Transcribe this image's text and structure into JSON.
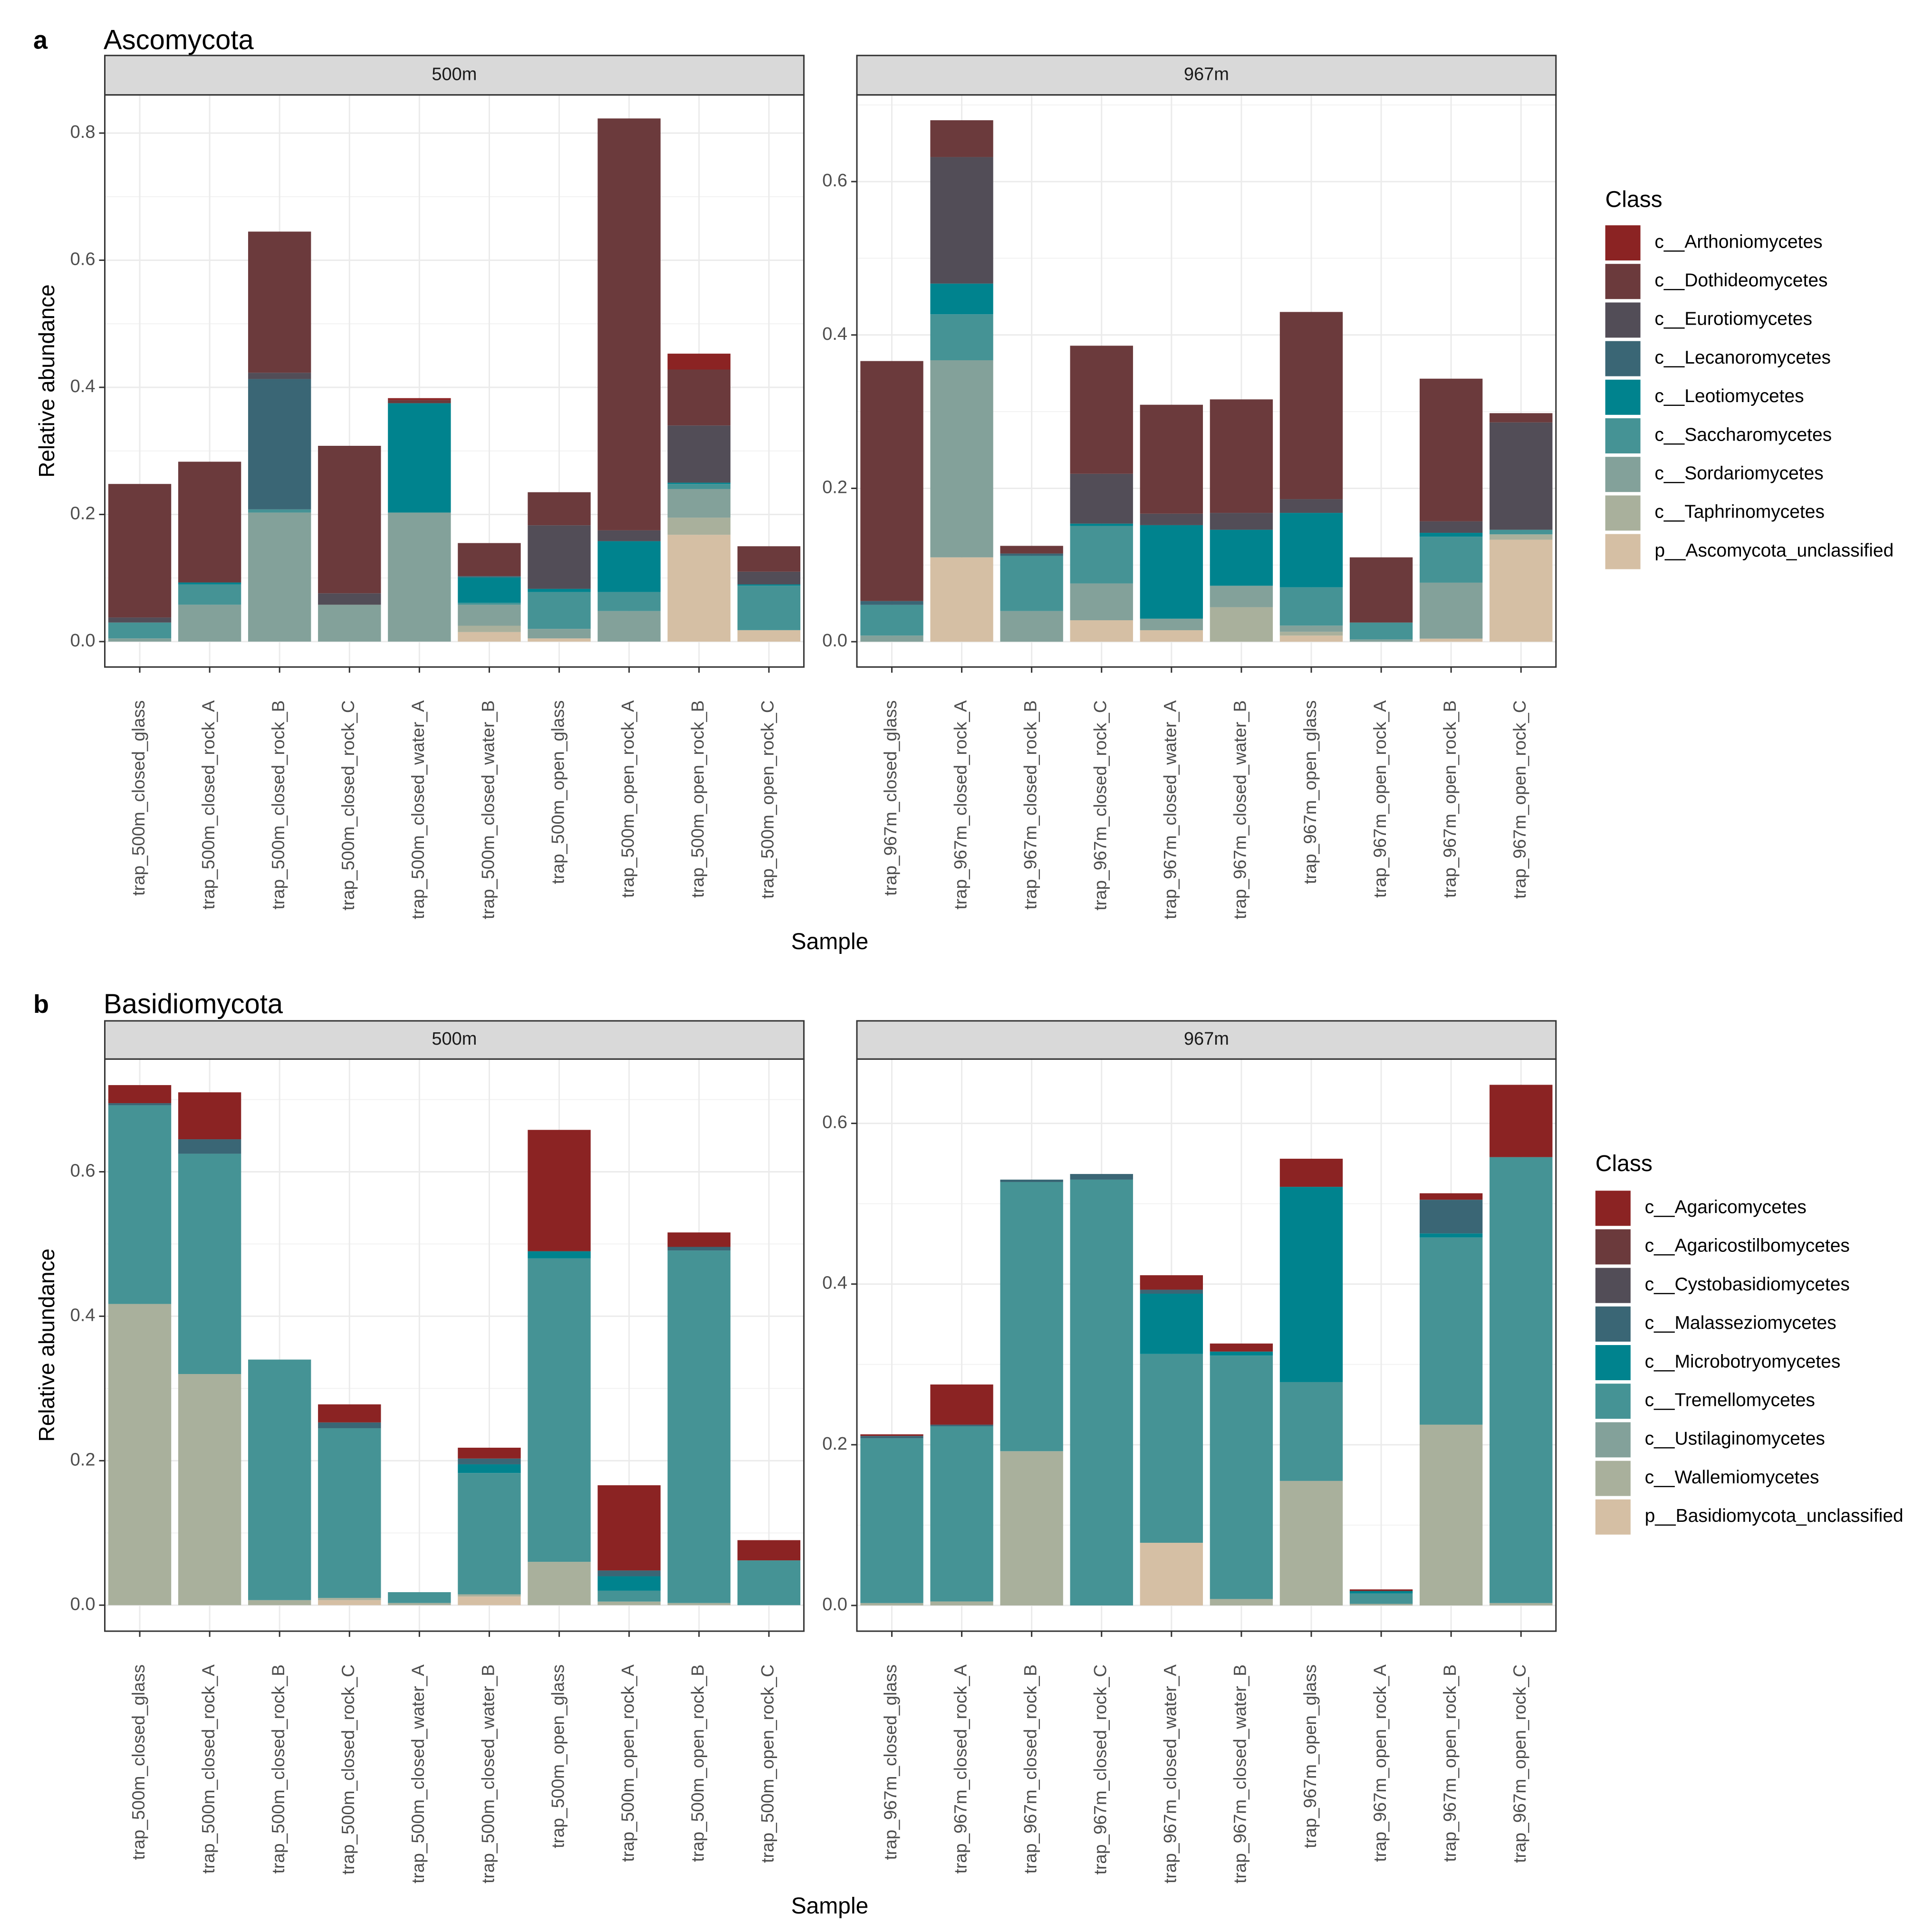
{
  "chart_data": [
    {
      "type": "bar",
      "stacked": true,
      "panel_label": "a",
      "title": "Ascomycota",
      "xlabel": "Sample",
      "ylabel": "Relative abundance",
      "legend_title": "Class",
      "legend_position": "right",
      "grid": true,
      "classes": [
        "c__Arthoniomycetes",
        "c__Dothideomycetes",
        "c__Eurotiomycetes",
        "c__Lecanoromycetes",
        "c__Leotiomycetes",
        "c__Saccharomycetes",
        "c__Sordariomycetes",
        "c__Taphrinomycetes",
        "p__Ascomycota_unclassified"
      ],
      "colors": [
        "#8B2323",
        "#6B3A3C",
        "#524D57",
        "#3A6675",
        "#00838E",
        "#459395",
        "#83A19A",
        "#A9B09C",
        "#D5BFA4"
      ],
      "facets": [
        {
          "label": "500m",
          "ylim": [
            -0.04,
            0.86
          ],
          "yticks": [
            0,
            0.2,
            0.4,
            0.6,
            0.8
          ],
          "ytick_labels": [
            "0.0",
            "0.2",
            "0.4",
            "0.6",
            "0.8"
          ],
          "categories": [
            "trap_500m_closed_glass",
            "trap_500m_closed_rock_A",
            "trap_500m_closed_rock_B",
            "trap_500m_closed_rock_C",
            "trap_500m_closed_water_A",
            "trap_500m_closed_water_B",
            "trap_500m_open_glass",
            "trap_500m_open_rock_A",
            "trap_500m_open_rock_B",
            "trap_500m_open_rock_C"
          ],
          "series": [
            {
              "name": "p__Ascomycota_unclassified",
              "values": [
                0,
                0,
                0,
                0,
                0,
                0.015,
                0.005,
                0,
                0.168,
                0.018
              ]
            },
            {
              "name": "c__Taphrinomycetes",
              "values": [
                0,
                0,
                0,
                0,
                0,
                0.01,
                0,
                0,
                0.027,
                0
              ]
            },
            {
              "name": "c__Sordariomycetes",
              "values": [
                0.005,
                0.058,
                0.203,
                0.058,
                0.203,
                0.033,
                0.015,
                0.048,
                0.045,
                0
              ]
            },
            {
              "name": "c__Saccharomycetes",
              "values": [
                0.025,
                0.032,
                0.005,
                0,
                0,
                0.003,
                0.058,
                0.03,
                0.008,
                0.07
              ]
            },
            {
              "name": "c__Leotiomycetes",
              "values": [
                0,
                0.003,
                0,
                0,
                0.172,
                0.04,
                0.005,
                0.08,
                0.002,
                0.002
              ]
            },
            {
              "name": "c__Lecanoromycetes",
              "values": [
                0,
                0,
                0.205,
                0,
                0,
                0.002,
                0,
                0,
                0,
                0
              ]
            },
            {
              "name": "c__Eurotiomycetes",
              "values": [
                0.008,
                0,
                0.01,
                0.018,
                0,
                0,
                0.1,
                0.017,
                0.09,
                0.02
              ]
            },
            {
              "name": "c__Dothideomycetes",
              "values": [
                0.21,
                0.19,
                0.222,
                0.232,
                0.005,
                0.052,
                0.052,
                0.648,
                0.088,
                0.04
              ]
            },
            {
              "name": "c__Arthoniomycetes",
              "values": [
                0,
                0,
                0,
                0,
                0.003,
                0,
                0,
                0,
                0.025,
                0
              ]
            }
          ]
        },
        {
          "label": "967m",
          "ylim": [
            -0.033,
            0.713
          ],
          "yticks": [
            0,
            0.2,
            0.4,
            0.6
          ],
          "ytick_labels": [
            "0.0",
            "0.2",
            "0.4",
            "0.6"
          ],
          "categories": [
            "trap_967m_closed_glass",
            "trap_967m_closed_rock_A",
            "trap_967m_closed_rock_B",
            "trap_967m_closed_rock_C",
            "trap_967m_closed_water_A",
            "trap_967m_closed_water_B",
            "trap_967m_open_glass",
            "trap_967m_open_rock_A",
            "trap_967m_open_rock_B",
            "trap_967m_open_rock_C"
          ],
          "series": [
            {
              "name": "p__Ascomycota_unclassified",
              "values": [
                0,
                0.11,
                0,
                0.028,
                0.015,
                0,
                0.008,
                0,
                0.004,
                0.133
              ]
            },
            {
              "name": "c__Taphrinomycetes",
              "values": [
                0,
                0,
                0,
                0,
                0,
                0.045,
                0.005,
                0,
                0,
                0.007
              ]
            },
            {
              "name": "c__Sordariomycetes",
              "values": [
                0.008,
                0.257,
                0.04,
                0.048,
                0.015,
                0.028,
                0.008,
                0.003,
                0.073,
                0
              ]
            },
            {
              "name": "c__Saccharomycetes",
              "values": [
                0.04,
                0.06,
                0.072,
                0.075,
                0,
                0,
                0.05,
                0.022,
                0.06,
                0.006
              ]
            },
            {
              "name": "c__Leotiomycetes",
              "values": [
                0,
                0.04,
                0,
                0.003,
                0.122,
                0.073,
                0.097,
                0,
                0.005,
                0
              ]
            },
            {
              "name": "c__Lecanoromycetes",
              "values": [
                0.005,
                0,
                0.003,
                0,
                0,
                0,
                0,
                0,
                0,
                0
              ]
            },
            {
              "name": "c__Eurotiomycetes",
              "values": [
                0,
                0.165,
                0,
                0.065,
                0.015,
                0.022,
                0.018,
                0,
                0.015,
                0.14
              ]
            },
            {
              "name": "c__Dothideomycetes",
              "values": [
                0.313,
                0.048,
                0.01,
                0.167,
                0.142,
                0.148,
                0.244,
                0.085,
                0.186,
                0.012
              ]
            },
            {
              "name": "c__Arthoniomycetes",
              "values": [
                0,
                0,
                0,
                0,
                0,
                0,
                0,
                0,
                0,
                0
              ]
            }
          ]
        }
      ]
    },
    {
      "type": "bar",
      "stacked": true,
      "panel_label": "b",
      "title": "Basidiomycota",
      "xlabel": "Sample",
      "ylabel": "Relative abundance",
      "legend_title": "Class",
      "legend_position": "right",
      "grid": true,
      "classes": [
        "c__Agaricomycetes",
        "c__Agaricostilbomycetes",
        "c__Cystobasidiomycetes",
        "c__Malasseziomycetes",
        "c__Microbotryomycetes",
        "c__Tremellomycetes",
        "c__Ustilaginomycetes",
        "c__Wallemiomycetes",
        "p__Basidiomycota_unclassified"
      ],
      "colors": [
        "#8B2323",
        "#6B3A3C",
        "#524D57",
        "#3A6675",
        "#00838E",
        "#459395",
        "#83A19A",
        "#A9B09C",
        "#D5BFA4"
      ],
      "facets": [
        {
          "label": "500m",
          "ylim": [
            -0.036,
            0.756
          ],
          "yticks": [
            0,
            0.2,
            0.4,
            0.6
          ],
          "ytick_labels": [
            "0.0",
            "0.2",
            "0.4",
            "0.6"
          ],
          "categories": [
            "trap_500m_closed_glass",
            "trap_500m_closed_rock_A",
            "trap_500m_closed_rock_B",
            "trap_500m_closed_rock_C",
            "trap_500m_closed_water_A",
            "trap_500m_closed_water_B",
            "trap_500m_open_glass",
            "trap_500m_open_rock_A",
            "trap_500m_open_rock_B",
            "trap_500m_open_rock_C"
          ],
          "series": [
            {
              "name": "p__Basidiomycota_unclassified",
              "values": [
                0,
                0,
                0,
                0.007,
                0,
                0.012,
                0,
                0,
                0,
                0
              ]
            },
            {
              "name": "c__Wallemiomycetes",
              "values": [
                0.417,
                0.32,
                0.007,
                0.003,
                0.003,
                0.003,
                0.06,
                0.005,
                0.003,
                0
              ]
            },
            {
              "name": "c__Ustilaginomycetes",
              "values": [
                0,
                0,
                0,
                0,
                0,
                0,
                0,
                0,
                0,
                0
              ]
            },
            {
              "name": "c__Tremellomycetes",
              "values": [
                0.275,
                0.305,
                0.333,
                0.235,
                0.015,
                0.168,
                0.42,
                0.015,
                0.488,
                0.062
              ]
            },
            {
              "name": "c__Microbotryomycetes",
              "values": [
                0,
                0,
                0,
                0,
                0,
                0.012,
                0.01,
                0.02,
                0,
                0
              ]
            },
            {
              "name": "c__Malasseziomycetes",
              "values": [
                0.003,
                0.02,
                0,
                0.008,
                0,
                0.008,
                0,
                0.008,
                0.005,
                0
              ]
            },
            {
              "name": "c__Cystobasidiomycetes",
              "values": [
                0,
                0,
                0,
                0,
                0,
                0,
                0,
                0,
                0,
                0
              ]
            },
            {
              "name": "c__Agaricostilbomycetes",
              "values": [
                0,
                0,
                0,
                0,
                0,
                0,
                0,
                0,
                0,
                0
              ]
            },
            {
              "name": "c__Agaricomycetes",
              "values": [
                0.025,
                0.065,
                0,
                0.025,
                0,
                0.015,
                0.168,
                0.118,
                0.02,
                0.028
              ]
            }
          ]
        },
        {
          "label": "967m",
          "ylim": [
            -0.032,
            0.68
          ],
          "yticks": [
            0,
            0.2,
            0.4,
            0.6
          ],
          "ytick_labels": [
            "0.0",
            "0.2",
            "0.4",
            "0.6"
          ],
          "categories": [
            "trap_967m_closed_glass",
            "trap_967m_closed_rock_A",
            "trap_967m_closed_rock_B",
            "trap_967m_closed_rock_C",
            "trap_967m_closed_water_A",
            "trap_967m_closed_water_B",
            "trap_967m_open_glass",
            "trap_967m_open_rock_A",
            "trap_967m_open_rock_B",
            "trap_967m_open_rock_C"
          ],
          "series": [
            {
              "name": "p__Basidiomycota_unclassified",
              "values": [
                0,
                0,
                0,
                0,
                0.078,
                0,
                0,
                0,
                0,
                0
              ]
            },
            {
              "name": "c__Wallemiomycetes",
              "values": [
                0.003,
                0.005,
                0.192,
                0,
                0,
                0.008,
                0.155,
                0.002,
                0.225,
                0.003
              ]
            },
            {
              "name": "c__Ustilaginomycetes",
              "values": [
                0,
                0,
                0,
                0,
                0,
                0,
                0,
                0,
                0,
                0
              ]
            },
            {
              "name": "c__Tremellomycetes",
              "values": [
                0.205,
                0.218,
                0.335,
                0.53,
                0.235,
                0.303,
                0.123,
                0.013,
                0.233,
                0.555
              ]
            },
            {
              "name": "c__Microbotryomycetes",
              "values": [
                0,
                0,
                0,
                0,
                0.075,
                0.005,
                0.243,
                0.003,
                0.005,
                0
              ]
            },
            {
              "name": "c__Malasseziomycetes",
              "values": [
                0.003,
                0.002,
                0.003,
                0.007,
                0.005,
                0,
                0,
                0,
                0.042,
                0
              ]
            },
            {
              "name": "c__Cystobasidiomycetes",
              "values": [
                0,
                0,
                0,
                0,
                0,
                0,
                0,
                0,
                0,
                0
              ]
            },
            {
              "name": "c__Agaricostilbomycetes",
              "values": [
                0,
                0,
                0,
                0,
                0,
                0,
                0,
                0,
                0,
                0
              ]
            },
            {
              "name": "c__Agaricomycetes",
              "values": [
                0.002,
                0.05,
                0,
                0,
                0.018,
                0.01,
                0.035,
                0.002,
                0.008,
                0.09
              ]
            }
          ]
        }
      ]
    }
  ]
}
